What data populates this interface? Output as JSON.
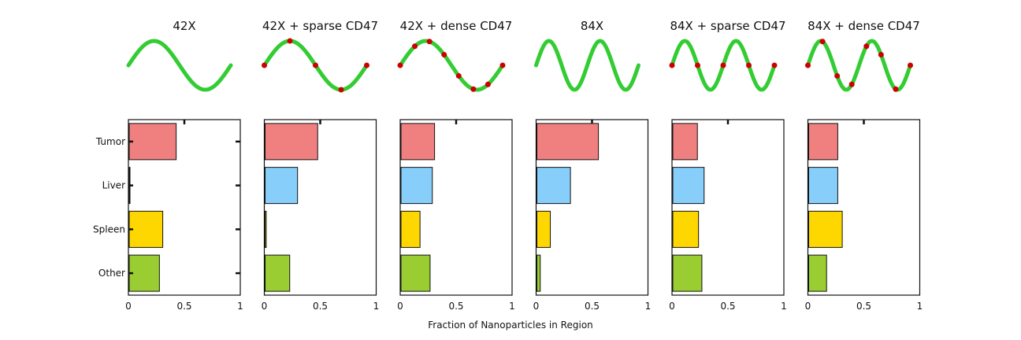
{
  "chart_data": {
    "type": "bar",
    "orientation": "horizontal",
    "xlabel": "Fraction of Nanoparticles in Region",
    "xlim": [
      0,
      1
    ],
    "xticks": [
      "0",
      "0.5",
      "1"
    ],
    "categories": [
      "Tumor",
      "Liver",
      "Spleen",
      "Other"
    ],
    "colors": {
      "Tumor": "#f08080",
      "Liver": "#87cefa",
      "Spleen": "#ffd700",
      "Other": "#9acd32"
    },
    "wave_color": "#33cc33",
    "marker_color": "#cc0000",
    "panels": [
      {
        "title": "42X",
        "frequency": 1,
        "markers": 0,
        "values": [
          0.42,
          0.0,
          0.3,
          0.27
        ]
      },
      {
        "title": "42X + sparse CD47",
        "frequency": 1,
        "markers": 5,
        "values": [
          0.47,
          0.29,
          0.01,
          0.22
        ]
      },
      {
        "title": "42X + dense CD47",
        "frequency": 1,
        "markers": 8,
        "values": [
          0.3,
          0.28,
          0.17,
          0.26
        ]
      },
      {
        "title": "84X",
        "frequency": 2,
        "markers": 0,
        "values": [
          0.55,
          0.3,
          0.12,
          0.03
        ]
      },
      {
        "title": "84X + sparse CD47",
        "frequency": 2,
        "markers": 5,
        "values": [
          0.22,
          0.28,
          0.23,
          0.26
        ]
      },
      {
        "title": "84X + dense CD47",
        "frequency": 2,
        "markers": 8,
        "values": [
          0.26,
          0.26,
          0.3,
          0.16
        ]
      }
    ]
  }
}
